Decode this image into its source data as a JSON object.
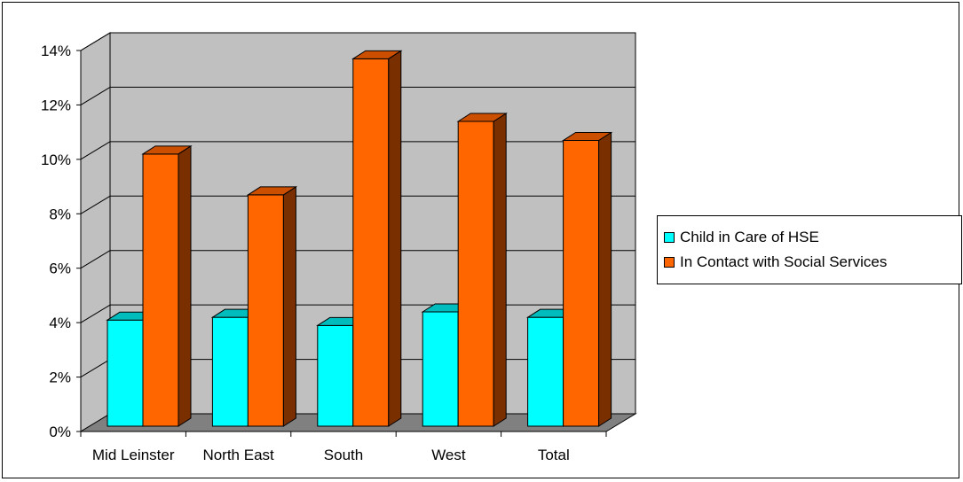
{
  "chart_data": {
    "type": "bar",
    "categories": [
      "Mid Leinster",
      "North East",
      "South",
      "West",
      "Total"
    ],
    "series": [
      {
        "name": "Child in Care of HSE",
        "values": [
          3.9,
          4.0,
          3.7,
          4.2,
          4.0
        ],
        "color": "#00ffff",
        "side_color": "#008a8a",
        "top_color": "#00bcbc"
      },
      {
        "name": "In Contact with Social Services",
        "values": [
          10.0,
          8.5,
          13.5,
          11.2,
          10.5
        ],
        "color": "#ff6600",
        "side_color": "#7a2f00",
        "top_color": "#cc4f00"
      }
    ],
    "y_ticks": [
      "0%",
      "2%",
      "4%",
      "6%",
      "8%",
      "10%",
      "12%",
      "14%"
    ],
    "ylim": [
      0,
      14
    ],
    "y_unit": "%",
    "grid": true,
    "legend_position": "right",
    "wall_color": "#c0c0c0",
    "floor_color": "#808080"
  }
}
